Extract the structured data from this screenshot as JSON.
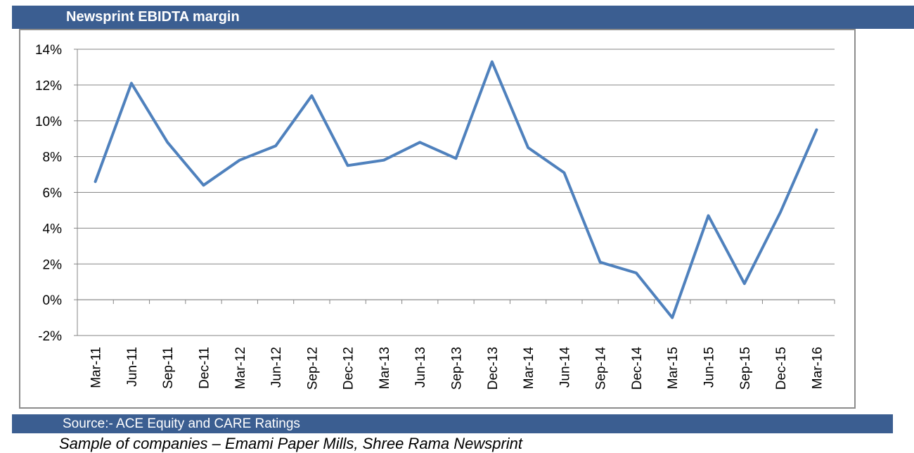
{
  "header": {
    "title": "Newsprint EBIDTA margin"
  },
  "footer": {
    "source": "Source:- ACE Equity and CARE Ratings",
    "sample_note": "Sample of companies – Emami Paper Mills, Shree Rama Newsprint"
  },
  "colors": {
    "bar": "#3b5e91",
    "line": "#4f81bd",
    "grid": "#868686"
  },
  "chart_data": {
    "type": "line",
    "title": "Newsprint EBIDTA margin",
    "xlabel": "",
    "ylabel": "",
    "categories": [
      "Mar-11",
      "Jun-11",
      "Sep-11",
      "Dec-11",
      "Mar-12",
      "Jun-12",
      "Sep-12",
      "Dec-12",
      "Mar-13",
      "Jun-13",
      "Sep-13",
      "Dec-13",
      "Mar-14",
      "Jun-14",
      "Sep-14",
      "Dec-14",
      "Mar-15",
      "Jun-15",
      "Sep-15",
      "Dec-15",
      "Mar-16"
    ],
    "series": [
      {
        "values": [
          6.6,
          12.1,
          8.8,
          6.4,
          7.8,
          8.6,
          11.4,
          7.5,
          7.8,
          8.8,
          7.9,
          13.3,
          8.5,
          7.1,
          2.1,
          1.5,
          -1.0,
          4.7,
          0.9,
          4.9,
          9.5
        ]
      }
    ],
    "ylim": [
      -2,
      14
    ],
    "yticks": [
      "-2%",
      "0%",
      "2%",
      "4%",
      "6%",
      "8%",
      "10%",
      "12%",
      "14%"
    ],
    "ytick_values": [
      -2,
      0,
      2,
      4,
      6,
      8,
      10,
      12,
      14
    ],
    "grid": true,
    "legend": "none"
  }
}
